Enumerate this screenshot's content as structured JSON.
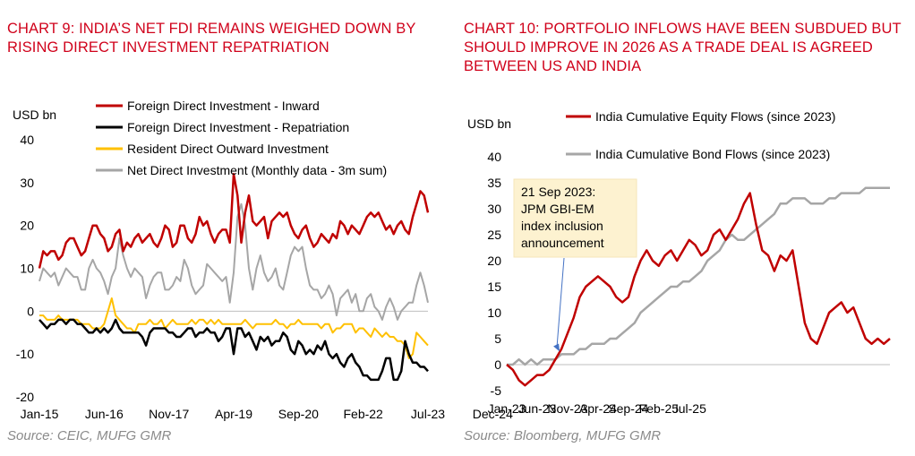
{
  "chart_data": [
    {
      "type": "line",
      "title": "CHART 9: INDIA’S NET FDI REMAINS WEIGHED DOWN BY RISING DIRECT INVESTMENT REPATRIATION",
      "source": "Source: CEIC, MUFG GMR",
      "ylabel": "USD bn",
      "ylim": [
        -20,
        40
      ],
      "yticks": [
        "40",
        "30",
        "20",
        "10",
        "0",
        "-10",
        "-20"
      ],
      "xticks": [
        "Jan-15",
        "Jun-16",
        "Nov-17",
        "Apr-19",
        "Sep-20",
        "Feb-22",
        "Jul-23",
        "Dec-24"
      ],
      "x_start": "2015-01",
      "x_end": "2025-08",
      "grid": false,
      "legend": "top",
      "series": [
        {
          "name": "Foreign Direct Investment - Inward",
          "color": "#c00000",
          "values": [
            10,
            14,
            13,
            14,
            14,
            12,
            13,
            16,
            17,
            17,
            15,
            13,
            14,
            17,
            20,
            20,
            18,
            17,
            14,
            15,
            18,
            19,
            14,
            16,
            15,
            17,
            18,
            16,
            17,
            18,
            16,
            15,
            17,
            20,
            19,
            15,
            16,
            20,
            20,
            17,
            16,
            18,
            22,
            20,
            21,
            18,
            16,
            18,
            19,
            19,
            16,
            32,
            27,
            16,
            23,
            27,
            21,
            20,
            21,
            22,
            17,
            21,
            22,
            23,
            22,
            23,
            20,
            18,
            17,
            19,
            20,
            17,
            15,
            16,
            18,
            17,
            16,
            18,
            17,
            21,
            20,
            18,
            20,
            19,
            18,
            20,
            22,
            23,
            22,
            23,
            21,
            19,
            20,
            18,
            20,
            21,
            19,
            18,
            22,
            25,
            28,
            27,
            23
          ]
        },
        {
          "name": "Foreign Direct Investment -  Repatriation",
          "color": "#000000",
          "values": [
            -2,
            -3,
            -4,
            -3,
            -3,
            -2,
            -2,
            -3,
            -2,
            -2,
            -3,
            -3,
            -4,
            -5,
            -5,
            -4,
            -5,
            -4,
            -5,
            -4,
            -2,
            -4,
            -5,
            -5,
            -5,
            -5,
            -5,
            -6,
            -8,
            -5,
            -4,
            -4,
            -4,
            -4,
            -5,
            -5,
            -6,
            -6,
            -5,
            -4,
            -4,
            -6,
            -5,
            -5,
            -4,
            -5,
            -5,
            -7,
            -6,
            -4,
            -4,
            -10,
            -4,
            -4,
            -6,
            -5,
            -7,
            -9,
            -6,
            -7,
            -6,
            -8,
            -7,
            -7,
            -5,
            -6,
            -9,
            -10,
            -7,
            -8,
            -10,
            -9,
            -10,
            -8,
            -9,
            -7,
            -10,
            -11,
            -10,
            -12,
            -13,
            -11,
            -10,
            -12,
            -13,
            -15,
            -15,
            -16,
            -16,
            -16,
            -14,
            -11,
            -11,
            -16,
            -16,
            -14,
            -7,
            -10,
            -12,
            -12,
            -13,
            -13,
            -14
          ]
        },
        {
          "name": "Resident Direct Outward Investment",
          "color": "#ffc000",
          "values": [
            -1,
            -1,
            -2,
            -2,
            -2,
            -1,
            -2,
            -2,
            -2,
            -2,
            -2,
            -3,
            -3,
            -3,
            -4,
            -4,
            -4,
            -3,
            0,
            3,
            -1,
            -2,
            -3,
            -4,
            -4,
            -5,
            -3,
            -3,
            -3,
            -2,
            -3,
            -3,
            -2,
            -4,
            -3,
            -2,
            -3,
            -3,
            -3,
            -3,
            -2,
            -3,
            -2,
            -2,
            -3,
            -2,
            -3,
            -2,
            -3,
            -3,
            -3,
            -3,
            -3,
            -3,
            -2,
            -3,
            -4,
            -3,
            -3,
            -3,
            -3,
            -3,
            -2,
            -3,
            -3,
            -4,
            -3,
            -3,
            -2,
            -3,
            -3,
            -3,
            -3,
            -3,
            -4,
            -3,
            -3,
            -5,
            -4,
            -4,
            -3,
            -3,
            -3,
            -5,
            -4,
            -4,
            -5,
            -6,
            -4,
            -5,
            -6,
            -5,
            -6,
            -6,
            -7,
            -7,
            -8,
            -11,
            -10,
            -5,
            -6,
            -7,
            -8
          ]
        },
        {
          "name": "Net Direct Investment (Monthly data - 3m sum)",
          "color": "#a6a6a6",
          "values": [
            7,
            10,
            9,
            8,
            9,
            6,
            8,
            10,
            9,
            8,
            8,
            5,
            5,
            10,
            12,
            10,
            9,
            7,
            4,
            8,
            10,
            17,
            13,
            10,
            8,
            10,
            9,
            8,
            3,
            6,
            8,
            9,
            9,
            5,
            5,
            6,
            8,
            7,
            12,
            10,
            6,
            4,
            5,
            6,
            11,
            10,
            9,
            8,
            7,
            8,
            2,
            9,
            22,
            25,
            20,
            10,
            5,
            10,
            13,
            9,
            7,
            8,
            10,
            6,
            5,
            9,
            13,
            15,
            14,
            15,
            10,
            6,
            5,
            5,
            3,
            4,
            6,
            4,
            -1,
            3,
            4,
            5,
            2,
            4,
            0,
            0,
            3,
            4,
            1,
            0,
            -2,
            1,
            3,
            1,
            -2,
            0,
            1,
            2,
            2,
            6,
            9,
            6,
            2
          ]
        }
      ]
    },
    {
      "type": "line",
      "title": "CHART 10: PORTFOLIO INFLOWS HAVE BEEN SUBDUED BUT SHOULD IMPROVE IN 2026 AS A TRADE DEAL IS AGREED BETWEEN US AND INDIA",
      "source": "Source: Bloomberg, MUFG GMR",
      "ylabel": "USD bn",
      "ylim": [
        -5,
        40
      ],
      "yticks": [
        "40",
        "35",
        "30",
        "25",
        "20",
        "15",
        "10",
        "5",
        "0",
        "-5"
      ],
      "xticks": [
        "Jan-23",
        "Jun-23",
        "Nov-23",
        "Apr-24",
        "Sep-24",
        "Feb-25",
        "Jul-25"
      ],
      "x_start": "2023-01",
      "x_end": "2025-12",
      "grid": false,
      "legend": "top",
      "annotation": {
        "lines": [
          "21 Sep 2023:",
          "JPM GBI-EM",
          "index inclusion",
          "announcement"
        ],
        "x": "2023-09"
      },
      "series": [
        {
          "name": "India Cumulative Equity Flows (since 2023)",
          "color": "#c00000",
          "values": [
            0,
            -1,
            -3,
            -4,
            -3,
            -2,
            -2,
            -1,
            1,
            3,
            6,
            9,
            13,
            15,
            16,
            17,
            16,
            15,
            13,
            12,
            13,
            17,
            20,
            22,
            20,
            19,
            21,
            22,
            20,
            22,
            24,
            23,
            21,
            22,
            25,
            26,
            24,
            26,
            28,
            31,
            33,
            27,
            22,
            21,
            18,
            21,
            20,
            22,
            15,
            8,
            5,
            4,
            7,
            10,
            11,
            12,
            10,
            11,
            8,
            5,
            4,
            5,
            4,
            5
          ]
        },
        {
          "name": "India Cumulative Bond Flows (since 2023)",
          "color": "#a6a6a6",
          "values": [
            0,
            0,
            1,
            0,
            1,
            0,
            1,
            1,
            1,
            2,
            2,
            2,
            3,
            3,
            4,
            4,
            4,
            5,
            5,
            6,
            7,
            8,
            10,
            11,
            12,
            13,
            14,
            15,
            15,
            16,
            16,
            17,
            18,
            20,
            21,
            22,
            24,
            25,
            24,
            24,
            25,
            26,
            27,
            28,
            29,
            31,
            31,
            32,
            32,
            32,
            31,
            31,
            31,
            32,
            32,
            33,
            33,
            33,
            33,
            34,
            34,
            34,
            34,
            34
          ]
        }
      ]
    }
  ]
}
